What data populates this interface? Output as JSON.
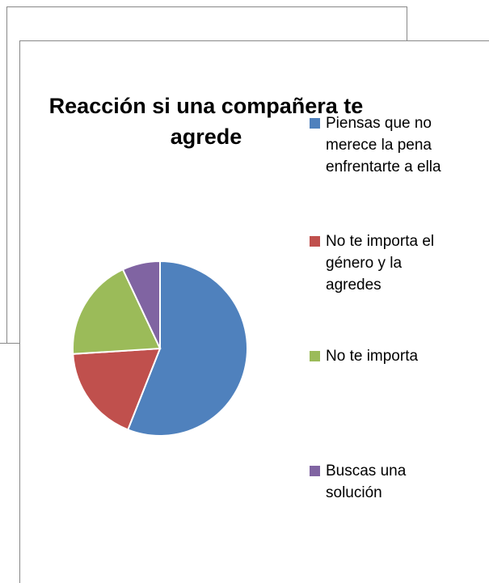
{
  "chart_data": {
    "type": "pie",
    "title": "Reacción si una compañera te agrede",
    "categories": [
      "Piensas que no merece la pena enfrentarte a ella",
      "No te importa el género y la agredes",
      "No te importa",
      "Buscas una solución"
    ],
    "values": [
      56,
      18,
      19,
      7
    ],
    "colors": [
      "#4f81bd",
      "#c0504d",
      "#9bbb59",
      "#8064a2"
    ],
    "legend": "right"
  }
}
